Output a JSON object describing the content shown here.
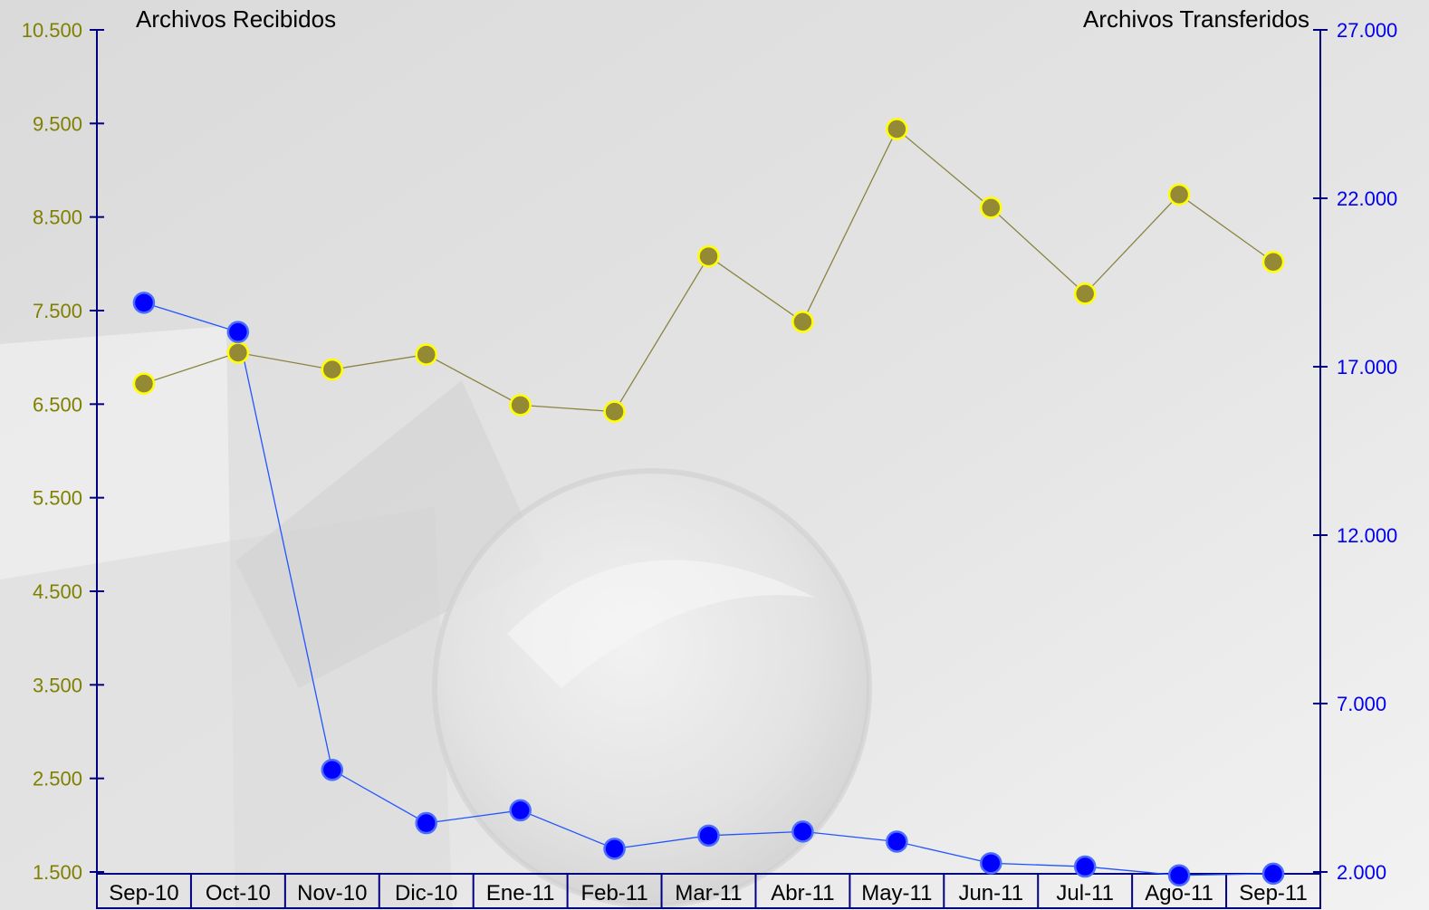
{
  "chart_data": {
    "type": "line",
    "categories": [
      "Sep-10",
      "Oct-10",
      "Nov-10",
      "Dic-10",
      "Ene-11",
      "Feb-11",
      "Mar-11",
      "Abr-11",
      "May-11",
      "Jun-11",
      "Jul-11",
      "Ago-11",
      "Sep-11"
    ],
    "left_axis": {
      "title": "Archivos Recibidos",
      "range": [
        1500,
        10500
      ],
      "ticks": [
        "1.500",
        "2.500",
        "3.500",
        "4.500",
        "5.500",
        "6.500",
        "7.500",
        "8.500",
        "9.500",
        "10.500"
      ],
      "color": "#808000"
    },
    "right_axis": {
      "title": "Archivos Transferidos",
      "range": [
        2000,
        27000
      ],
      "ticks": [
        "2.000",
        "7.000",
        "12.000",
        "17.000",
        "22.000",
        "27.000"
      ],
      "color": "#0000ee"
    },
    "series": [
      {
        "axis": "left",
        "color": "#948a36",
        "marker_edge": "#ffff00",
        "values": [
          6720,
          7050,
          6870,
          7030,
          6490,
          6420,
          8080,
          7380,
          9440,
          8600,
          7680,
          8740,
          8020
        ]
      },
      {
        "axis": "right",
        "color": "#0000ff",
        "marker_edge": "#4a6cff",
        "values": [
          18900,
          18030,
          5030,
          3450,
          3830,
          2690,
          3080,
          3200,
          2900,
          2260,
          2160,
          1900,
          1950
        ]
      }
    ],
    "grid": false
  }
}
